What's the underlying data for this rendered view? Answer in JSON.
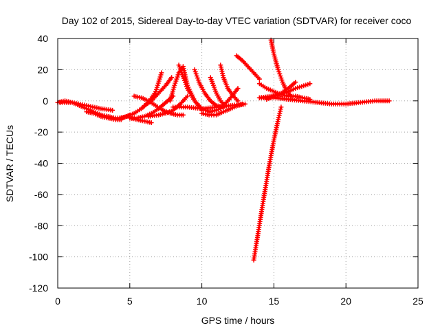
{
  "chart_data": {
    "type": "scatter",
    "title": "Day 102 of 2015, Sidereal Day-to-day VTEC variation (SDTVAR) for receiver coco",
    "xlabel": "GPS time / hours",
    "ylabel": "SDTVAR / TECUs",
    "xlim": [
      0,
      25
    ],
    "ylim": [
      -120,
      40
    ],
    "xticks": [
      0,
      5,
      10,
      15,
      20,
      25
    ],
    "yticks": [
      -120,
      -100,
      -80,
      -60,
      -40,
      -20,
      0,
      20,
      40
    ],
    "grid": true,
    "legend": "none",
    "point_marker": "plus",
    "color": "#ff0000",
    "series": [
      {
        "x": [
          0.0,
          0.5,
          1.0,
          1.5,
          2.0,
          2.5,
          3.0,
          3.5,
          4.0,
          4.5,
          5.0
        ],
        "y": [
          -1,
          0,
          -1,
          -3,
          -5,
          -7,
          -9,
          -10,
          -11,
          -11,
          -9
        ]
      },
      {
        "x": [
          0.2,
          1.0,
          2.0,
          3.0,
          3.8
        ],
        "y": [
          -1,
          -1,
          -3,
          -5,
          -6
        ]
      },
      {
        "x": [
          2.0,
          2.5,
          3.0,
          3.5,
          4.0,
          4.4
        ],
        "y": [
          -7,
          -8,
          -10,
          -11,
          -12,
          -12
        ]
      },
      {
        "x": [
          4.3,
          4.8,
          5.3,
          5.8,
          6.3,
          6.8,
          7.2
        ],
        "y": [
          -11,
          -10,
          -8,
          -5,
          -1,
          6,
          18
        ]
      },
      {
        "x": [
          5.0,
          5.5,
          6.0,
          6.5,
          7.0,
          7.5,
          8.0
        ],
        "y": [
          -11,
          -11,
          -10,
          -8,
          -5,
          -1,
          3
        ]
      },
      {
        "x": [
          5.0,
          5.5,
          6.0,
          6.5
        ],
        "y": [
          -11,
          -12,
          -13,
          -14
        ]
      },
      {
        "x": [
          5.3,
          5.8,
          6.3,
          6.8,
          7.3
        ],
        "y": [
          3,
          2,
          0,
          -3,
          -6
        ]
      },
      {
        "x": [
          6.0,
          6.5,
          7.0,
          7.5,
          7.9
        ],
        "y": [
          -3,
          0,
          5,
          10,
          15
        ]
      },
      {
        "x": [
          7.3,
          7.8,
          8.3,
          8.7
        ],
        "y": [
          -6,
          -8,
          -9,
          -9
        ]
      },
      {
        "x": [
          6.3,
          7.0,
          7.5,
          8.0,
          8.5,
          9.0
        ],
        "y": [
          -10,
          -9,
          -8,
          -6,
          -2,
          3
        ]
      },
      {
        "x": [
          7.8,
          8.1,
          8.4,
          8.7,
          9.0,
          9.5,
          10.0
        ],
        "y": [
          0,
          10,
          18,
          22,
          10,
          0,
          -6
        ]
      },
      {
        "x": [
          8.4,
          8.6,
          9.0,
          9.5,
          10.0,
          10.5,
          11.0
        ],
        "y": [
          23,
          18,
          8,
          0,
          -5,
          -7,
          -6
        ]
      },
      {
        "x": [
          9.5,
          9.8,
          10.2,
          10.6,
          11.0,
          11.5
        ],
        "y": [
          20,
          12,
          5,
          0,
          -3,
          -4
        ]
      },
      {
        "x": [
          10.6,
          10.8,
          11.0,
          11.3,
          11.6
        ],
        "y": [
          15,
          10,
          5,
          0,
          -3
        ]
      },
      {
        "x": [
          11.0,
          11.3,
          11.6,
          12.0,
          12.5
        ],
        "y": [
          -6,
          -5,
          -2,
          2,
          8
        ]
      },
      {
        "x": [
          11.3,
          11.5,
          11.8,
          12.2,
          12.5
        ],
        "y": [
          23,
          15,
          8,
          3,
          0
        ]
      },
      {
        "x": [
          12.4,
          12.8,
          13.2,
          13.6,
          14.0
        ],
        "y": [
          29,
          26,
          22,
          18,
          14
        ]
      },
      {
        "x": [
          8.0,
          9.0,
          10.0,
          11.0,
          12.0,
          12.8
        ],
        "y": [
          -4,
          -4,
          -5,
          -4,
          -3,
          -2
        ]
      },
      {
        "x": [
          10.0,
          10.5,
          11.0,
          11.5,
          12.0,
          12.5,
          13.0
        ],
        "y": [
          -8,
          -9,
          -9,
          -7,
          -5,
          -3,
          -2
        ]
      },
      {
        "x": [
          14.0,
          14.5,
          15.0,
          15.5,
          16.0,
          16.5,
          17.0,
          17.5
        ],
        "y": [
          11,
          8,
          6,
          4,
          3,
          3,
          2,
          1
        ]
      },
      {
        "x": [
          14.8,
          15.0,
          15.3,
          15.6,
          15.9,
          16.2
        ],
        "y": [
          39,
          30,
          20,
          12,
          6,
          3
        ]
      },
      {
        "x": [
          14.0,
          14.8,
          15.5,
          16.0,
          16.5,
          17.5
        ],
        "y": [
          2,
          3,
          4,
          6,
          8,
          11
        ]
      },
      {
        "x": [
          14.5,
          15.0,
          15.5,
          16.0,
          16.5
        ],
        "y": [
          1,
          3,
          5,
          8,
          12
        ]
      },
      {
        "x": [
          14.0,
          15.0,
          16.0,
          17.0,
          18.0,
          19.0,
          20.0,
          21.0,
          22.0,
          23.0
        ],
        "y": [
          2,
          2,
          1,
          0,
          -1,
          -2,
          -2,
          -1,
          0,
          0
        ]
      },
      {
        "x": [
          13.6,
          13.9,
          14.3,
          14.7,
          15.0,
          15.3,
          15.5
        ],
        "y": [
          -102,
          -85,
          -62,
          -40,
          -25,
          -12,
          -4
        ]
      }
    ]
  }
}
